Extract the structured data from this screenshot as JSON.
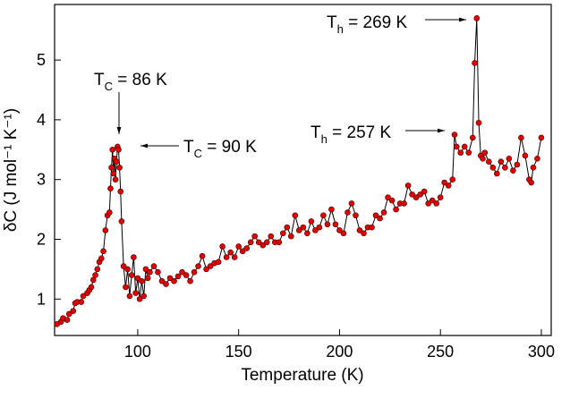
{
  "chart_data": {
    "type": "line",
    "xlabel": "Temperature (K)",
    "ylabel": "δC (J mol⁻¹ K⁻¹)",
    "xlim": [
      58.8,
      304.9
    ],
    "ylim": [
      0.39,
      5.93
    ],
    "xticks": [
      100,
      150,
      200,
      250,
      300
    ],
    "yticks": [
      1,
      2,
      3,
      4,
      5
    ],
    "color": "#000000",
    "marker_color": "#e00000",
    "x": [
      60,
      62,
      63,
      65,
      66,
      68,
      69,
      70,
      72,
      73,
      75,
      76,
      77,
      78,
      79,
      80,
      81,
      82,
      83,
      84,
      85,
      86,
      86.5,
      87,
      87.5,
      88,
      88.5,
      89,
      89.5,
      90,
      90.5,
      91,
      91.5,
      92,
      93,
      94,
      95,
      96,
      97,
      98,
      99,
      100,
      101,
      102,
      103,
      104,
      105,
      106,
      108,
      110,
      112,
      114,
      116,
      118,
      120,
      122,
      124,
      126,
      128,
      130,
      132,
      134,
      136,
      138,
      140,
      142,
      144,
      146,
      148,
      150,
      152,
      154,
      156,
      158,
      160,
      162,
      164,
      166,
      168,
      170,
      172,
      174,
      176,
      178,
      180,
      182,
      184,
      186,
      188,
      190,
      192,
      194,
      196,
      198,
      200,
      202,
      204,
      206,
      208,
      210,
      212,
      214,
      216,
      218,
      220,
      222,
      224,
      226,
      228,
      230,
      232,
      234,
      236,
      238,
      240,
      242,
      244,
      246,
      248,
      250,
      252,
      254,
      256,
      257,
      258,
      260,
      262,
      264,
      266,
      267,
      268,
      269,
      270,
      271,
      272,
      274,
      276,
      278,
      280,
      282,
      284,
      286,
      288,
      290,
      292,
      294,
      295,
      296,
      298,
      300
    ],
    "values": [
      0.58,
      0.62,
      0.68,
      0.65,
      0.75,
      0.8,
      0.93,
      0.95,
      0.95,
      1.05,
      1.1,
      1.15,
      1.2,
      1.32,
      1.4,
      1.5,
      1.62,
      1.68,
      1.8,
      2.15,
      2.4,
      2.45,
      2.85,
      3.2,
      3.5,
      3.1,
      3.35,
      3.0,
      3.3,
      3.55,
      3.5,
      3.2,
      2.8,
      2.3,
      1.55,
      1.2,
      1.5,
      1.05,
      1.4,
      1.7,
      1.1,
      1.35,
      1.0,
      1.3,
      1.05,
      1.5,
      1.35,
      1.45,
      1.55,
      1.45,
      1.3,
      1.25,
      1.35,
      1.3,
      1.38,
      1.45,
      1.4,
      1.3,
      1.45,
      1.55,
      1.72,
      1.5,
      1.55,
      1.6,
      1.62,
      1.88,
      1.7,
      1.78,
      1.7,
      1.88,
      1.8,
      1.85,
      1.95,
      2.05,
      1.95,
      1.9,
      1.95,
      2.05,
      1.95,
      1.95,
      2.1,
      2.2,
      2.05,
      2.4,
      2.15,
      2.2,
      2.1,
      2.3,
      2.15,
      2.2,
      2.4,
      2.25,
      2.5,
      2.25,
      2.15,
      2.1,
      2.45,
      2.6,
      2.4,
      2.15,
      2.1,
      2.2,
      2.2,
      2.4,
      2.35,
      2.45,
      2.7,
      2.65,
      2.5,
      2.6,
      2.6,
      2.9,
      2.75,
      2.7,
      2.75,
      2.8,
      2.6,
      2.65,
      2.6,
      2.7,
      2.95,
      2.9,
      3.0,
      3.75,
      3.55,
      3.45,
      3.55,
      3.45,
      3.7,
      4.95,
      5.7,
      3.95,
      3.4,
      3.35,
      3.45,
      3.3,
      3.2,
      3.1,
      3.3,
      3.2,
      3.35,
      3.15,
      3.25,
      3.7,
      3.4,
      3.0,
      2.95,
      3.2,
      3.35,
      3.7
    ],
    "annotations": [
      {
        "main": "T",
        "sub": "C",
        "rest": " = 86 K"
      },
      {
        "main": "T",
        "sub": "C",
        "rest": " = 90 K"
      },
      {
        "main": "T",
        "sub": "h",
        "rest": " = 257 K"
      },
      {
        "main": "T",
        "sub": "h",
        "rest": " = 269 K"
      }
    ]
  }
}
